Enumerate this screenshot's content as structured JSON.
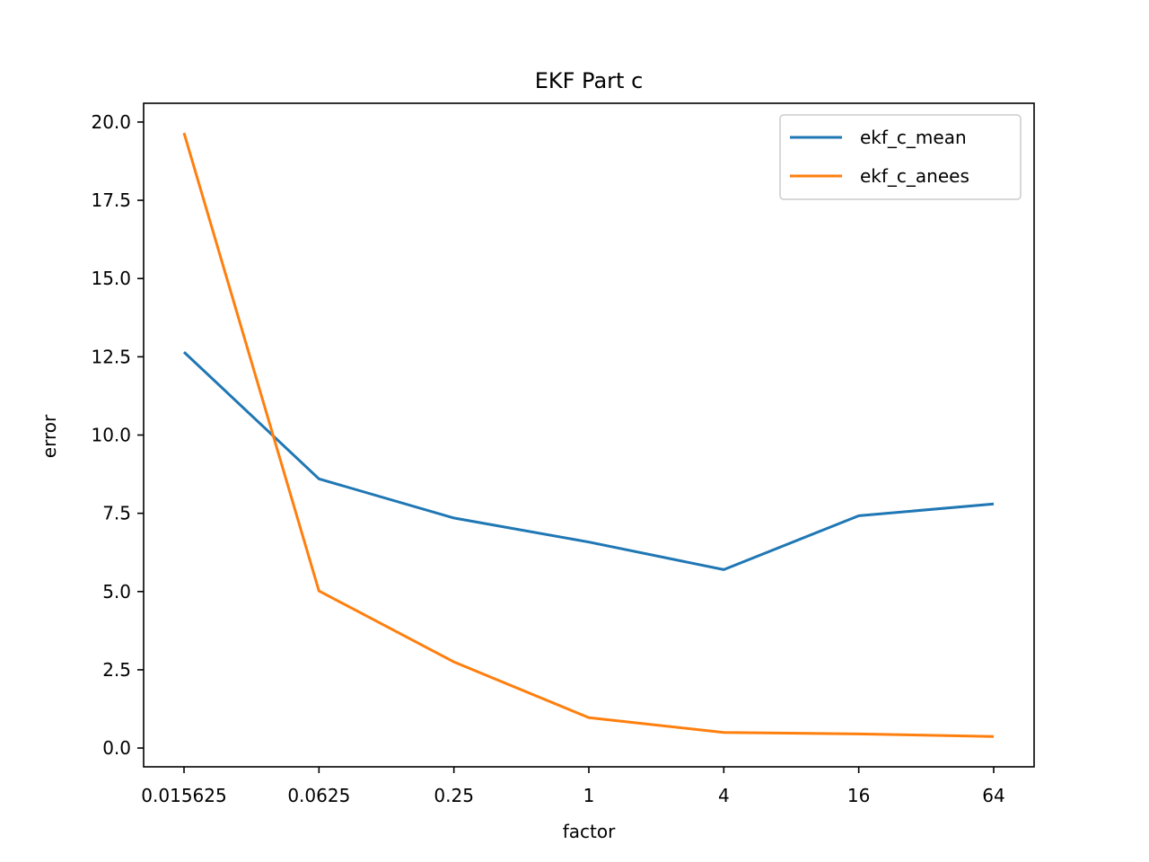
{
  "chart_data": {
    "type": "line",
    "title": "EKF Part c",
    "xlabel": "factor",
    "ylabel": "error",
    "categories": [
      "0.015625",
      "0.0625",
      "0.25",
      "1",
      "4",
      "16",
      "64"
    ],
    "series": [
      {
        "name": "ekf_c_mean",
        "color": "#1f77b4",
        "values": [
          12.65,
          8.6,
          7.35,
          6.58,
          5.7,
          7.42,
          7.8
        ]
      },
      {
        "name": "ekf_c_anees",
        "color": "#ff7f0e",
        "values": [
          19.65,
          5.02,
          2.75,
          0.97,
          0.5,
          0.45,
          0.37
        ]
      }
    ],
    "ylim": [
      -0.6,
      20.6
    ],
    "yticks": [
      "0.0",
      "2.5",
      "5.0",
      "7.5",
      "10.0",
      "12.5",
      "15.0",
      "17.5",
      "20.0"
    ],
    "legend": "top-right",
    "grid": false
  }
}
